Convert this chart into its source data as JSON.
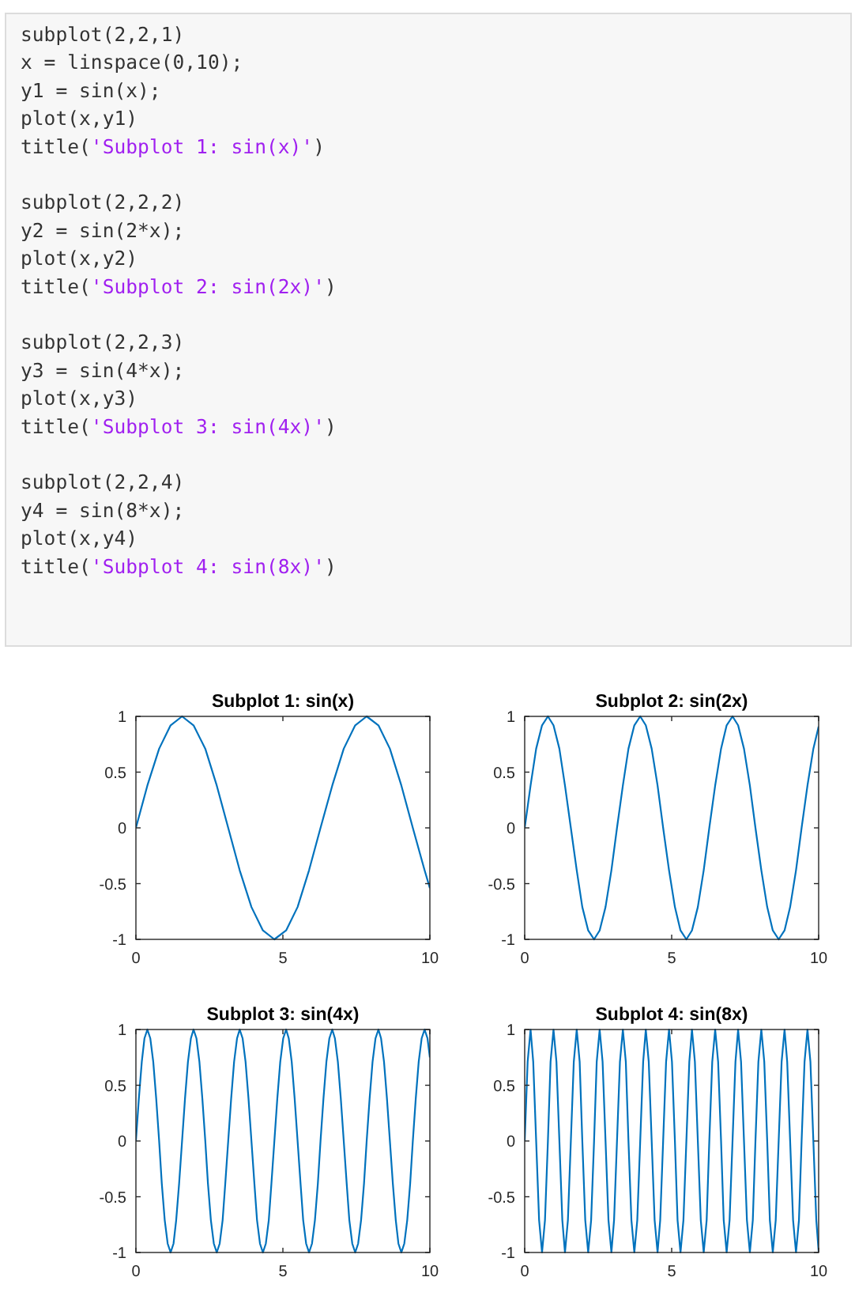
{
  "chart_data": [
    {
      "type": "other",
      "annotations": [
        "subplot(2,2,1)",
        "x = linspace(0,10);",
        "y1 = sin(x);",
        "plot(x,y1)",
        "title('Subplot 1: sin(x)')",
        "subplot(2,2,2)",
        "y2 = sin(2*x);",
        "plot(x,y2)",
        "title('Subplot 2: sin(2x)')",
        "subplot(2,2,3)",
        "y3 = sin(4*x);",
        "plot(x,y3)",
        "title('Subplot 3: sin(4x)')",
        "subplot(2,2,4)",
        "y4 = sin(8*x);",
        "plot(x,y4)",
        "title('Subplot 4: sin(8x)')"
      ]
    },
    {
      "type": "line",
      "title": "Subplot 1: sin(x)",
      "xlim": [
        0,
        10
      ],
      "ylim": [
        -1,
        1
      ],
      "xticks": [
        0,
        5,
        10
      ],
      "yticks": [
        -1,
        -0.5,
        0,
        0.5,
        1
      ],
      "x": [
        0,
        0.39,
        0.79,
        1.18,
        1.57,
        1.96,
        2.36,
        2.75,
        3.14,
        3.53,
        3.93,
        4.32,
        4.71,
        5.11,
        5.5,
        5.89,
        6.28,
        6.68,
        7.07,
        7.46,
        7.85,
        8.25,
        8.64,
        9.03,
        9.42,
        9.82,
        10
      ],
      "series": [
        {
          "color": "#0072bd",
          "values": [
            0,
            0.38,
            0.71,
            0.92,
            1,
            0.92,
            0.71,
            0.38,
            0,
            -0.38,
            -0.71,
            -0.92,
            -1,
            -0.92,
            -0.71,
            -0.38,
            0,
            0.38,
            0.71,
            0.92,
            1,
            0.92,
            0.71,
            0.38,
            0,
            -0.38,
            -0.54
          ]
        }
      ]
    },
    {
      "type": "line",
      "title": "Subplot 2: sin(2x)",
      "xlim": [
        0,
        10
      ],
      "ylim": [
        -1,
        1
      ],
      "xticks": [
        0,
        5,
        10
      ],
      "yticks": [
        -1,
        -0.5,
        0,
        0.5,
        1
      ],
      "x": [
        0,
        0.2,
        0.39,
        0.59,
        0.79,
        0.98,
        1.18,
        1.37,
        1.57,
        1.77,
        1.96,
        2.16,
        2.36,
        2.55,
        2.75,
        2.95,
        3.14,
        3.34,
        3.53,
        3.73,
        3.93,
        4.12,
        4.32,
        4.52,
        4.71,
        4.91,
        5.11,
        5.3,
        5.5,
        5.69,
        5.89,
        6.09,
        6.28,
        6.48,
        6.68,
        6.87,
        7.07,
        7.26,
        7.46,
        7.66,
        7.85,
        8.05,
        8.25,
        8.44,
        8.64,
        8.84,
        9.03,
        9.23,
        9.42,
        9.62,
        9.82,
        10
      ],
      "series": [
        {
          "color": "#0072bd",
          "values": [
            0,
            0.38,
            0.71,
            0.92,
            1,
            0.92,
            0.71,
            0.38,
            0,
            -0.38,
            -0.71,
            -0.92,
            -1,
            -0.92,
            -0.71,
            -0.38,
            0,
            0.38,
            0.71,
            0.92,
            1,
            0.92,
            0.71,
            0.38,
            0,
            -0.38,
            -0.71,
            -0.92,
            -1,
            -0.92,
            -0.71,
            -0.38,
            0,
            0.38,
            0.71,
            0.92,
            1,
            0.92,
            0.71,
            0.38,
            0,
            -0.38,
            -0.71,
            -0.92,
            -1,
            -0.92,
            -0.71,
            -0.38,
            0,
            0.38,
            0.71,
            0.91
          ]
        }
      ]
    },
    {
      "type": "line",
      "title": "Subplot 3: sin(4x)",
      "xlim": [
        0,
        10
      ],
      "ylim": [
        -1,
        1
      ],
      "xticks": [
        0,
        5,
        10
      ],
      "yticks": [
        -1,
        -0.5,
        0,
        0.5,
        1
      ],
      "x": [
        0,
        0.1,
        0.2,
        0.29,
        0.39,
        0.49,
        0.59,
        0.69,
        0.79,
        0.88,
        0.98,
        1.08,
        1.18,
        1.28,
        1.37,
        1.47,
        1.57,
        1.67,
        1.77,
        1.87,
        1.96,
        2.06,
        2.16,
        2.26,
        2.36,
        2.45,
        2.55,
        2.65,
        2.75,
        2.85,
        2.95,
        3.04,
        3.14,
        3.24,
        3.34,
        3.44,
        3.53,
        3.63,
        3.73,
        3.83,
        3.93,
        4.03,
        4.12,
        4.22,
        4.32,
        4.42,
        4.52,
        4.61,
        4.71,
        4.81,
        4.91,
        5.01,
        5.11,
        5.2,
        5.3,
        5.4,
        5.5,
        5.6,
        5.69,
        5.79,
        5.89,
        5.99,
        6.09,
        6.19,
        6.28,
        6.38,
        6.48,
        6.58,
        6.68,
        6.77,
        6.87,
        6.97,
        7.07,
        7.17,
        7.26,
        7.36,
        7.46,
        7.56,
        7.66,
        7.76,
        7.85,
        7.95,
        8.05,
        8.15,
        8.25,
        8.34,
        8.44,
        8.54,
        8.64,
        8.74,
        8.84,
        8.93,
        9.03,
        9.13,
        9.23,
        9.33,
        9.42,
        9.52,
        9.62,
        9.72,
        9.82,
        9.92,
        10
      ],
      "series": [
        {
          "color": "#0072bd",
          "values": [
            0,
            0.38,
            0.71,
            0.92,
            1,
            0.92,
            0.71,
            0.38,
            0,
            -0.38,
            -0.71,
            -0.92,
            -1,
            -0.92,
            -0.71,
            -0.38,
            0,
            0.38,
            0.71,
            0.92,
            1,
            0.92,
            0.71,
            0.38,
            0,
            -0.38,
            -0.71,
            -0.92,
            -1,
            -0.92,
            -0.71,
            -0.38,
            0,
            0.38,
            0.71,
            0.92,
            1,
            0.92,
            0.71,
            0.38,
            0,
            -0.38,
            -0.71,
            -0.92,
            -1,
            -0.92,
            -0.71,
            -0.38,
            0,
            0.38,
            0.71,
            0.92,
            1,
            0.92,
            0.71,
            0.38,
            0,
            -0.38,
            -0.71,
            -0.92,
            -1,
            -0.92,
            -0.71,
            -0.38,
            0,
            0.38,
            0.71,
            0.92,
            1,
            0.92,
            0.71,
            0.38,
            0,
            -0.38,
            -0.71,
            -0.92,
            -1,
            -0.92,
            -0.71,
            -0.38,
            0,
            0.38,
            0.71,
            0.92,
            1,
            0.92,
            0.71,
            0.38,
            0,
            -0.38,
            -0.71,
            -0.92,
            -1,
            -0.92,
            -0.71,
            -0.38,
            0,
            0.38,
            0.71,
            0.92,
            1,
            0.92,
            0.75
          ]
        }
      ]
    },
    {
      "type": "line",
      "title": "Subplot 4: sin(8x)",
      "xlim": [
        0,
        10
      ],
      "ylim": [
        -1,
        1
      ],
      "xticks": [
        0,
        5,
        10
      ],
      "yticks": [
        -1,
        -0.5,
        0,
        0.5,
        1
      ],
      "x": [
        0,
        0.1,
        0.2,
        0.29,
        0.39,
        0.49,
        0.59,
        0.69,
        0.79,
        0.88,
        0.98,
        1.08,
        1.18,
        1.28,
        1.37,
        1.47,
        1.57,
        1.67,
        1.77,
        1.87,
        1.96,
        2.06,
        2.16,
        2.26,
        2.36,
        2.45,
        2.55,
        2.65,
        2.75,
        2.85,
        2.95,
        3.04,
        3.14,
        3.24,
        3.34,
        3.44,
        3.53,
        3.63,
        3.73,
        3.83,
        3.93,
        4.03,
        4.12,
        4.22,
        4.32,
        4.42,
        4.52,
        4.61,
        4.71,
        4.81,
        4.91,
        5.01,
        5.11,
        5.2,
        5.3,
        5.4,
        5.5,
        5.6,
        5.69,
        5.79,
        5.89,
        5.99,
        6.09,
        6.19,
        6.28,
        6.38,
        6.48,
        6.58,
        6.68,
        6.77,
        6.87,
        6.97,
        7.07,
        7.17,
        7.26,
        7.36,
        7.46,
        7.56,
        7.66,
        7.76,
        7.85,
        7.95,
        8.05,
        8.15,
        8.25,
        8.34,
        8.44,
        8.54,
        8.64,
        8.74,
        8.84,
        8.93,
        9.03,
        9.13,
        9.23,
        9.33,
        9.42,
        9.52,
        9.62,
        9.72,
        9.82,
        9.92,
        10
      ],
      "series": [
        {
          "color": "#0072bd",
          "values": [
            0,
            0.71,
            1,
            0.71,
            0,
            -0.71,
            -1,
            -0.71,
            0,
            0.71,
            1,
            0.71,
            0,
            -0.71,
            -1,
            -0.71,
            0,
            0.71,
            1,
            0.71,
            0,
            -0.71,
            -1,
            -0.71,
            0,
            0.71,
            1,
            0.71,
            0,
            -0.71,
            -1,
            -0.71,
            0,
            0.71,
            1,
            0.71,
            0,
            -0.71,
            -1,
            -0.71,
            0,
            0.71,
            1,
            0.71,
            0,
            -0.71,
            -1,
            -0.71,
            0,
            0.71,
            1,
            0.71,
            0,
            -0.71,
            -1,
            -0.71,
            0,
            0.71,
            1,
            0.71,
            0,
            -0.71,
            -1,
            -0.71,
            0,
            0.71,
            1,
            0.71,
            0,
            -0.71,
            -1,
            -0.71,
            0,
            0.71,
            1,
            0.71,
            0,
            -0.71,
            -1,
            -0.71,
            0,
            0.71,
            1,
            0.71,
            0,
            -0.71,
            -1,
            -0.71,
            0,
            0.71,
            1,
            0.71,
            0,
            -0.71,
            -1,
            -0.71,
            0,
            0.71,
            1,
            0.71,
            0,
            -0.71,
            -0.99
          ]
        }
      ]
    }
  ]
}
